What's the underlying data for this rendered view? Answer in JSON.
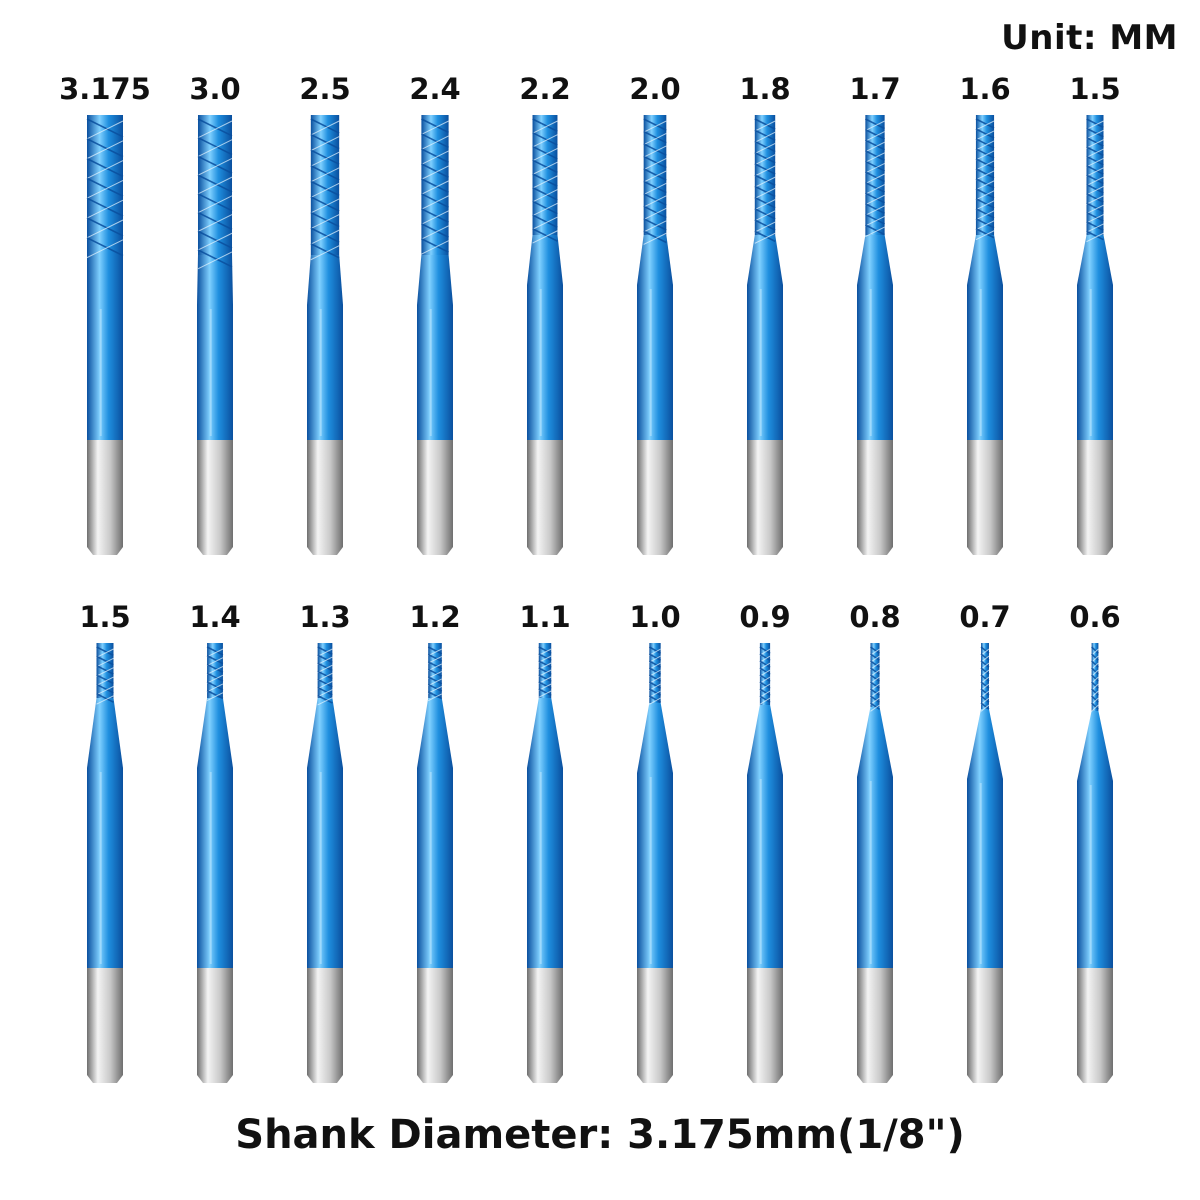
{
  "unit_label": "Unit: MM",
  "footer": "Shank Diameter: 3.175mm(1/8\")",
  "colors": {
    "coating_blue": "#1f8fdf",
    "coating_dark": "#0a4f9e",
    "coating_light": "#7fd0ff",
    "shank_silver": "#c8c8c8",
    "shank_dark": "#6e6e6e"
  },
  "rows": [
    {
      "bits": [
        {
          "size": "3.175"
        },
        {
          "size": "3.0"
        },
        {
          "size": "2.5"
        },
        {
          "size": "2.4"
        },
        {
          "size": "2.2"
        },
        {
          "size": "2.0"
        },
        {
          "size": "1.8"
        },
        {
          "size": "1.7"
        },
        {
          "size": "1.6"
        },
        {
          "size": "1.5"
        }
      ]
    },
    {
      "bits": [
        {
          "size": "1.5"
        },
        {
          "size": "1.4"
        },
        {
          "size": "1.3"
        },
        {
          "size": "1.2"
        },
        {
          "size": "1.1"
        },
        {
          "size": "1.0"
        },
        {
          "size": "0.9"
        },
        {
          "size": "0.8"
        },
        {
          "size": "0.7"
        },
        {
          "size": "0.6"
        }
      ]
    }
  ]
}
